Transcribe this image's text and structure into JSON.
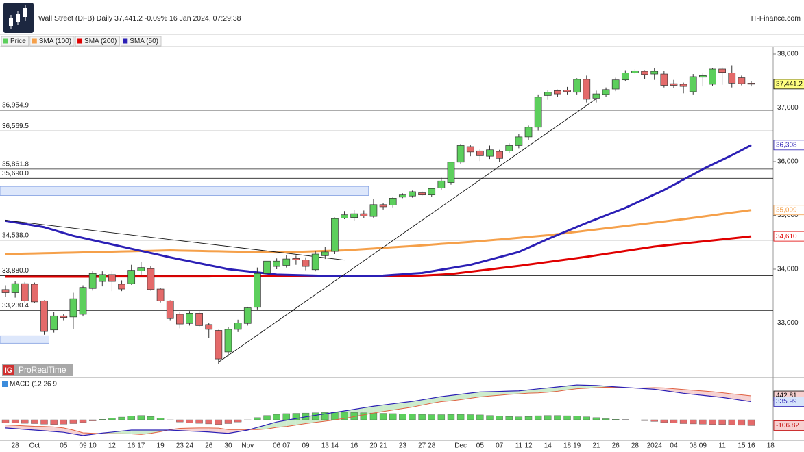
{
  "header": {
    "title": "Wall Street (DFB) Daily 37,441.2 -0.09% 16 Jan 2024, 07:29:38",
    "brand": "IT-Finance.com"
  },
  "watermark": {
    "badge": "IG",
    "text": "ProRealTime"
  },
  "chart_data": [
    {
      "type": "candlestick",
      "price_name": "Price",
      "up_color": "#5ccf5c",
      "down_color": "#e46a6a",
      "legend": "top-left",
      "categories": [
        null,
        "28",
        null,
        "Oct",
        null,
        null,
        "05",
        null,
        "09",
        "10",
        null,
        "12",
        null,
        "16",
        "17",
        null,
        "19",
        null,
        "23",
        "24",
        null,
        "26",
        null,
        "30",
        null,
        "Nov",
        null,
        null,
        "06",
        "07",
        null,
        "09",
        null,
        "13",
        "14",
        null,
        "16",
        null,
        "20",
        "21",
        null,
        "23",
        null,
        "27",
        "28",
        null,
        null,
        "Dec",
        null,
        "05",
        null,
        "07",
        null,
        "11",
        "12",
        null,
        "14",
        null,
        "18",
        "19",
        null,
        "21",
        null,
        "26",
        null,
        "28",
        null,
        "2024",
        null,
        "04",
        null,
        "08",
        "09",
        null,
        "11",
        null,
        "15",
        "16",
        null,
        "18"
      ],
      "open": [
        33620,
        33560,
        33730,
        33720,
        33410,
        32870,
        33130,
        33110,
        33160,
        33640,
        33770,
        33900,
        33720,
        33730,
        33970,
        34010,
        33630,
        33410,
        33160,
        32990,
        33180,
        32970,
        32860,
        32460,
        32880,
        32990,
        33290,
        33920,
        34050,
        34070,
        34200,
        34170,
        33990,
        34250,
        34330,
        34950,
        34960,
        35030,
        34980,
        35200,
        35190,
        35340,
        35360,
        35420,
        35380,
        35510,
        35610,
        35990,
        36280,
        36200,
        36100,
        36190,
        36200,
        36300,
        36460,
        36640,
        37230,
        37320,
        37330,
        37290,
        37530,
        37180,
        37250,
        37350,
        37520,
        37650,
        37680,
        37630,
        37630,
        37450,
        37440,
        37300,
        37570,
        37440,
        37720,
        37650,
        37560,
        37460,
        null,
        null
      ],
      "high": [
        33700,
        33780,
        33760,
        33750,
        33420,
        33200,
        33160,
        33560,
        33700,
        33960,
        33960,
        33960,
        33790,
        34080,
        34140,
        34060,
        33650,
        33420,
        33200,
        33220,
        33220,
        33000,
        32870,
        32920,
        33060,
        33300,
        34030,
        34200,
        34200,
        34260,
        34250,
        34220,
        34330,
        34410,
        34960,
        35080,
        35100,
        35090,
        35310,
        35230,
        35340,
        35410,
        35460,
        35450,
        35510,
        35700,
        36000,
        36330,
        36310,
        36230,
        36300,
        36220,
        36340,
        36520,
        36670,
        37250,
        37330,
        37340,
        37390,
        37550,
        37600,
        37320,
        37380,
        37560,
        37700,
        37720,
        37700,
        37740,
        37690,
        37520,
        37470,
        37630,
        37640,
        37740,
        37750,
        37790,
        37600,
        37490,
        null,
        null
      ],
      "low": [
        33480,
        33470,
        33380,
        33370,
        32780,
        32820,
        33050,
        32880,
        33120,
        33600,
        33680,
        33590,
        33590,
        33710,
        33900,
        33600,
        33380,
        33050,
        32900,
        32950,
        32920,
        32720,
        32230,
        32380,
        32830,
        32950,
        33250,
        33880,
        34000,
        34030,
        34080,
        33980,
        33960,
        34190,
        34280,
        34930,
        34900,
        34950,
        34950,
        35110,
        35150,
        35320,
        35330,
        35360,
        35340,
        35480,
        35570,
        35950,
        36100,
        36010,
        36050,
        36000,
        36160,
        36250,
        36400,
        36580,
        37150,
        37200,
        37250,
        37250,
        37100,
        37100,
        37200,
        37310,
        37490,
        37630,
        37530,
        37520,
        37380,
        37370,
        37270,
        37250,
        37400,
        37410,
        37430,
        37380,
        37420,
        37400,
        null,
        null
      ],
      "close": [
        33560,
        33730,
        33410,
        33390,
        32840,
        33130,
        33100,
        33450,
        33660,
        33920,
        33900,
        33770,
        33630,
        33980,
        34030,
        33620,
        33410,
        33080,
        32980,
        33180,
        32950,
        32880,
        32330,
        32880,
        33000,
        33280,
        33920,
        34150,
        34150,
        34190,
        34170,
        34050,
        34280,
        34320,
        34940,
        35010,
        35030,
        34990,
        35200,
        35160,
        35320,
        35380,
        35440,
        35380,
        35500,
        35640,
        35990,
        36300,
        36180,
        36110,
        36220,
        36060,
        36300,
        36460,
        36640,
        37200,
        37290,
        37260,
        37300,
        37530,
        37160,
        37260,
        37340,
        37520,
        37650,
        37690,
        37620,
        37680,
        37420,
        37420,
        37400,
        37580,
        37600,
        37720,
        37660,
        37460,
        37450,
        37441.2,
        null,
        null
      ],
      "series": [
        {
          "name": "SMA (100)",
          "color": "#f5a04a",
          "values": [
            34280,
            34284,
            34288,
            34292,
            34296,
            34300,
            34304,
            34308,
            34312,
            34316,
            34320,
            34324,
            34329,
            34333,
            34337,
            34341,
            34346,
            34350,
            34346,
            34343,
            34339,
            34335,
            34332,
            34328,
            34324,
            34321,
            34317,
            34314,
            34310,
            34316,
            34321,
            34327,
            34333,
            34339,
            34344,
            34350,
            34361,
            34373,
            34384,
            34396,
            34407,
            34419,
            34430,
            34443,
            34456,
            34469,
            34481,
            34494,
            34507,
            34520,
            34536,
            34551,
            34567,
            34583,
            34599,
            34614,
            34630,
            34651,
            34673,
            34694,
            34716,
            34737,
            34759,
            34780,
            34801,
            34823,
            34844,
            34866,
            34887,
            34909,
            34930,
            34954,
            34978,
            35002,
            35027,
            35051,
            35075,
            35099,
            null,
            null
          ]
        },
        {
          "name": "SMA (200)",
          "color": "#e00000",
          "values": [
            33860,
            33860,
            33860,
            33860,
            33860,
            33860,
            33860,
            33860,
            33860,
            33860,
            33860,
            33865,
            33865,
            33865,
            33865,
            33865,
            33865,
            33865,
            33865,
            33865,
            33865,
            33865,
            33870,
            33870,
            33870,
            33870,
            33870,
            33870,
            33870,
            33870,
            33870,
            33870,
            33870,
            33875,
            33875,
            33875,
            33875,
            33875,
            33875,
            33875,
            33875,
            33875,
            33875,
            33880,
            33890,
            33900,
            33910,
            33931,
            33953,
            33974,
            33996,
            34017,
            34039,
            34060,
            34084,
            34109,
            34133,
            34157,
            34181,
            34206,
            34230,
            34257,
            34284,
            34311,
            34339,
            34366,
            34393,
            34420,
            34439,
            34458,
            34477,
            34496,
            34515,
            34534,
            34553,
            34572,
            34591,
            34610,
            null,
            null
          ]
        },
        {
          "name": "SMA (50)",
          "color": "#2b1fb5",
          "values": [
            34900,
            34870,
            34840,
            34810,
            34780,
            34727,
            34673,
            34620,
            34580,
            34540,
            34500,
            34460,
            34420,
            34380,
            34340,
            34300,
            34260,
            34220,
            34183,
            34147,
            34110,
            34073,
            34037,
            34000,
            33980,
            33960,
            33940,
            33920,
            33900,
            33895,
            33890,
            33885,
            33880,
            33875,
            33870,
            33872,
            33874,
            33876,
            33878,
            33880,
            33893,
            33905,
            33918,
            33930,
            33960,
            33990,
            34020,
            34050,
            34080,
            34128,
            34176,
            34224,
            34272,
            34320,
            34400,
            34480,
            34560,
            34635,
            34710,
            34785,
            34860,
            34930,
            35000,
            35070,
            35140,
            35223,
            35305,
            35388,
            35470,
            35568,
            35665,
            35763,
            35860,
            35947,
            36033,
            36120,
            36214,
            36308,
            null,
            null
          ]
        }
      ],
      "ylim": [
        32000,
        38140
      ],
      "yticks": [
        {
          "value": 33000,
          "label": "33,000"
        },
        {
          "value": 34000,
          "label": "34,000"
        },
        {
          "value": 35000,
          "label": "35,000"
        },
        {
          "value": 36000,
          "label": "36,000"
        },
        {
          "value": 37000,
          "label": "37,000"
        },
        {
          "value": 38000,
          "label": "38,000"
        }
      ],
      "levels": [
        {
          "value": 36954.9,
          "label": "36,954.9"
        },
        {
          "value": 36569.5,
          "label": "36,569.5"
        },
        {
          "value": 35861.8,
          "label": "35,861.8"
        },
        {
          "value": 35690.0,
          "label": "35,690.0"
        },
        {
          "value": 34538.0,
          "label": "34,538.0"
        },
        {
          "value": 33880.0,
          "label": "33,880.0"
        },
        {
          "value": 33230.4,
          "label": "33,230.4"
        }
      ],
      "zones": [
        {
          "from": 35370,
          "to": 35540,
          "end_index": 37
        },
        {
          "from": 32620,
          "to": 32760,
          "end_index": 4
        }
      ],
      "trendlines": [
        {
          "from": {
            "index": 22,
            "value": 32270
          },
          "to": {
            "index": 61,
            "value": 37170
          }
        },
        {
          "from": {
            "index": 0,
            "value": 34910
          },
          "to": {
            "index": 35,
            "value": 34170
          }
        }
      ],
      "tags": [
        {
          "value": 37441.2,
          "label": "37,441.2",
          "color": "#000000",
          "background": "#ffff80"
        },
        {
          "value": 36308,
          "label": "36,308",
          "color": "#2b1fb5",
          "background": "#ffffff"
        },
        {
          "value": 35099,
          "label": "35,099",
          "color": "#f5a04a",
          "background": "#ffffff"
        },
        {
          "value": 34610,
          "label": "34,610",
          "color": "#e00000",
          "background": "#ffffff"
        }
      ]
    },
    {
      "type": "macd",
      "title": "MACD (12 26 9",
      "macd_color": "#2b1fb5",
      "signal_color": "#e06040",
      "up_color": "#5ccf5c",
      "down_color": "#e46a6a",
      "macd": [
        -150,
        -163,
        -177,
        -190,
        -203,
        -217,
        -230,
        -260,
        -290,
        -268,
        -245,
        -227,
        -208,
        -190,
        -190,
        -190,
        -190,
        -190,
        -199,
        -208,
        -216,
        -225,
        -238,
        -250,
        -220,
        -190,
        -140,
        -90,
        -40,
        -8,
        23,
        55,
        83,
        110,
        138,
        165,
        193,
        222,
        250,
        273,
        295,
        318,
        340,
        370,
        400,
        430,
        451,
        473,
        494,
        515,
        520,
        525,
        530,
        535,
        553,
        572,
        590,
        608,
        627,
        645,
        640,
        635,
        623,
        610,
        599,
        588,
        576,
        565,
        540,
        515,
        490,
        471,
        453,
        434,
        415,
        389,
        362,
        335.99,
        null,
        null
      ],
      "signal": [
        -95,
        -103,
        -112,
        -120,
        -123,
        -132,
        -150,
        -190,
        -240,
        -248,
        -255,
        -257,
        -258,
        -260,
        -270,
        -250,
        -220,
        -180,
        -159,
        -153,
        -151,
        -150,
        -153,
        -180,
        -180,
        -180,
        -180,
        -170,
        -140,
        -123,
        -97,
        -70,
        -47,
        -25,
        -2,
        25,
        58,
        92,
        125,
        153,
        180,
        208,
        235,
        270,
        305,
        335,
        351,
        373,
        399,
        425,
        440,
        455,
        470,
        480,
        493,
        497,
        510,
        528,
        552,
        575,
        585,
        595,
        603,
        600,
        594,
        588,
        591,
        595,
        590,
        575,
        560,
        546,
        533,
        519,
        500,
        479,
        462,
        442.81,
        null,
        null
      ],
      "histogram": [
        -55,
        -60,
        -65,
        -70,
        -80,
        -85,
        -80,
        -70,
        -50,
        -20,
        10,
        30,
        50,
        70,
        80,
        60,
        30,
        -10,
        -40,
        -55,
        -65,
        -75,
        -85,
        -70,
        -40,
        -10,
        40,
        80,
        100,
        115,
        120,
        125,
        130,
        135,
        140,
        140,
        135,
        130,
        125,
        120,
        115,
        110,
        105,
        100,
        95,
        95,
        100,
        100,
        95,
        90,
        80,
        70,
        60,
        55,
        60,
        75,
        80,
        80,
        75,
        70,
        55,
        40,
        20,
        10,
        5,
        0,
        -15,
        -30,
        -50,
        -60,
        -70,
        -75,
        -80,
        -85,
        -85,
        -90,
        -100,
        -106.82,
        null,
        null
      ],
      "ylim": [
        -380,
        760
      ],
      "tags": [
        {
          "value": 442.81,
          "label": "442.81",
          "color": "#000000",
          "background": "#f7d0d0"
        },
        {
          "value": 335.99,
          "label": "335.99",
          "color": "#2b1fb5",
          "background": "#d6e4fb"
        },
        {
          "value": -106.82,
          "label": "-106.82",
          "color": "#c00000",
          "background": "#f7d0d0"
        }
      ]
    }
  ]
}
